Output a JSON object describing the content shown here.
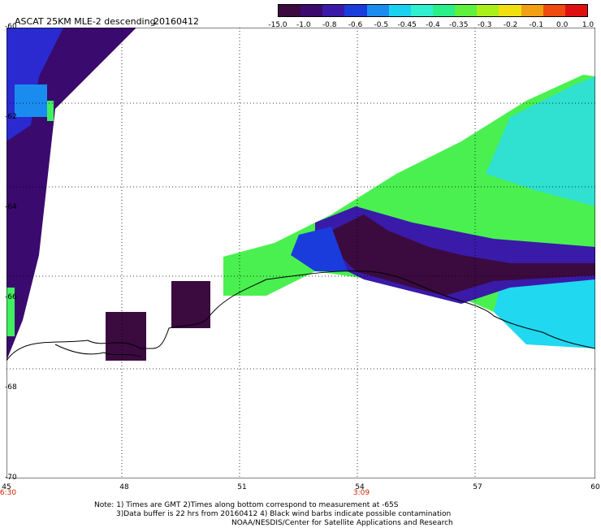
{
  "header": {
    "title": "ASCAT 25KM MLE-2 descending",
    "date": "20160412"
  },
  "colorbar": {
    "labels": [
      "-15.0",
      "-1.0",
      "-0.8",
      "-0.6",
      "-0.5",
      "-0.45",
      "-0.4",
      "-0.35",
      "-0.3",
      "-0.2",
      "-0.1",
      "0.0",
      "1.0"
    ],
    "colors": [
      "#3b0a3f",
      "#3a0a6e",
      "#3a1aa8",
      "#1a3cdc",
      "#1a8cf0",
      "#1ad2f0",
      "#30f0d0",
      "#2af08a",
      "#60f040",
      "#a8f018",
      "#f0e010",
      "#f0a010",
      "#f04a10",
      "#e01010"
    ]
  },
  "axes": {
    "x_ticks": [
      "45",
      "48",
      "51",
      "54",
      "57",
      "60"
    ],
    "y_ticks": [
      "-60",
      "-62",
      "-64",
      "-66",
      "-68",
      "-70"
    ],
    "x_range": [
      45,
      60
    ],
    "y_range": [
      -70,
      -60
    ],
    "grid": "dotted"
  },
  "times": [
    {
      "label": "6:30",
      "lon": 45
    },
    {
      "label": "3:09",
      "lon": 54
    }
  ],
  "notes": [
    "Note: 1) Times are GMT 2)Times along bottom correspond to measurement at -65S",
    "3)Data buffer is 22 hrs from 20160412 4) Black wind barbs indicate possible contamination",
    "NOAA/NESDIS/Center for Satellite Applications and Research"
  ]
}
